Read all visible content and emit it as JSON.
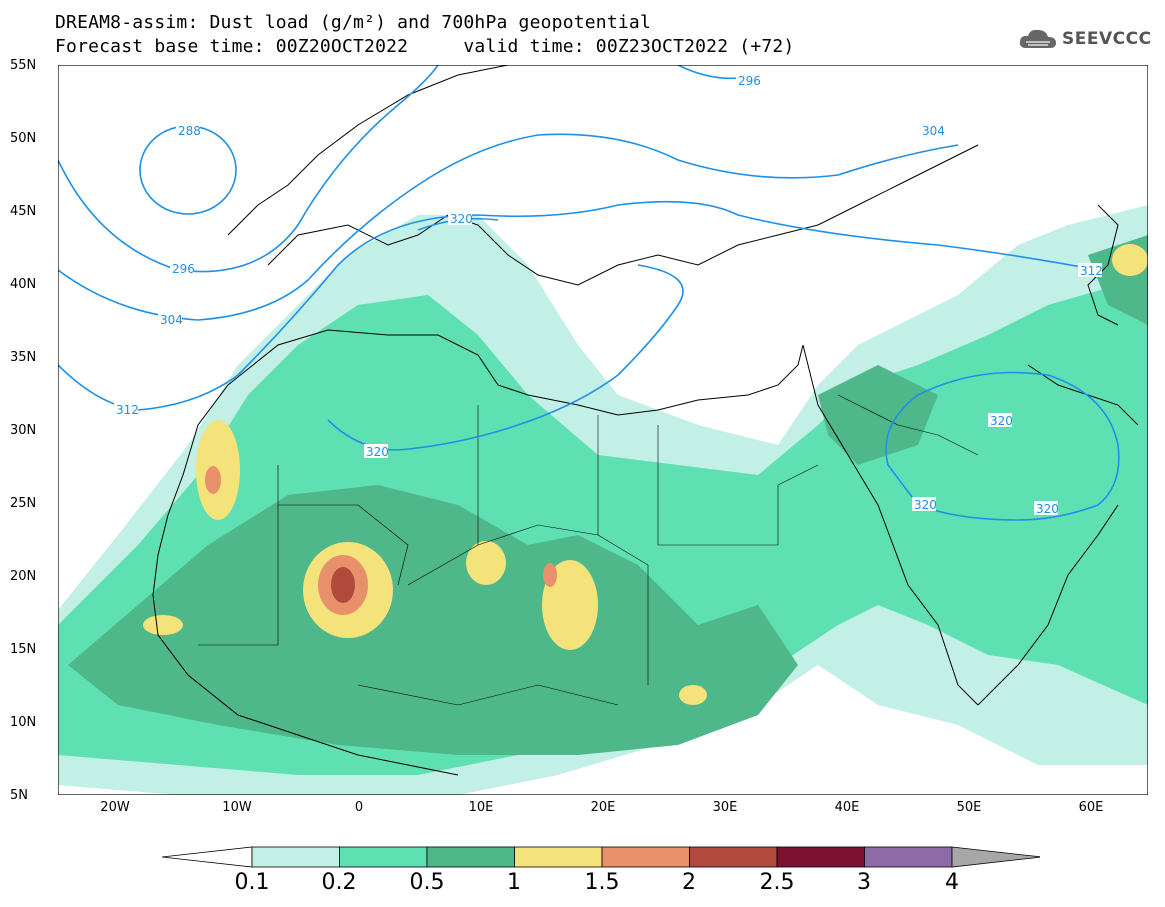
{
  "title": {
    "line1": "DREAM8-assim: Dust load (g/m²) and 700hPa geopotential",
    "line2": "Forecast base time: 00Z20OCT2022     valid time: 00Z23OCT2022 (+72)"
  },
  "logo": {
    "icon": "cloud-logo-icon",
    "text": "SEEVCCC"
  },
  "axes": {
    "lat_labels": [
      "55N",
      "50N",
      "45N",
      "40N",
      "35N",
      "30N",
      "25N",
      "20N",
      "15N",
      "10N",
      "5N"
    ],
    "lon_labels": [
      "20W",
      "10W",
      "0",
      "10E",
      "20E",
      "30E",
      "40E",
      "50E",
      "60E"
    ],
    "lat_range": [
      5,
      55
    ],
    "lon_range": [
      -25,
      65
    ]
  },
  "contours": {
    "unit": "dam",
    "labels": [
      "288",
      "296",
      "304",
      "312",
      "320",
      "296",
      "304",
      "312",
      "320",
      "320",
      "320",
      "320"
    ],
    "color": "#1e90e8"
  },
  "colorbar": {
    "levels": [
      "0.1",
      "0.2",
      "0.5",
      "1",
      "1.5",
      "2",
      "2.5",
      "3",
      "4"
    ],
    "colors": [
      "#ffffff",
      "#c2efe6",
      "#5fe0b3",
      "#4fb88a",
      "#f4e27a",
      "#e8906a",
      "#b24a3c",
      "#7c1232",
      "#8f6aa8",
      "#a7a7a7"
    ]
  }
}
